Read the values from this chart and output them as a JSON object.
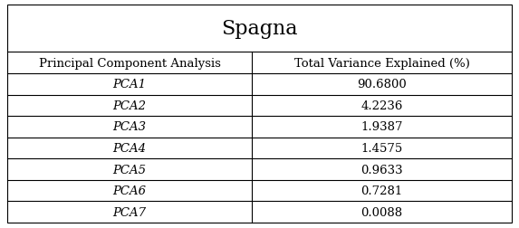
{
  "title": "Spagna",
  "col_headers": [
    "Principal Component Analysis",
    "Total Variance Explained (%)"
  ],
  "rows": [
    [
      "PCA1",
      "90.6800"
    ],
    [
      "PCA2",
      "4.2236"
    ],
    [
      "PCA3",
      "1.9387"
    ],
    [
      "PCA4",
      "1.4575"
    ],
    [
      "PCA5",
      "0.9633"
    ],
    [
      "PCA6",
      "0.7281"
    ],
    [
      "PCA7",
      "0.0088"
    ]
  ],
  "background_color": "#ffffff",
  "border_color": "#000000",
  "title_fontsize": 16,
  "header_fontsize": 9.5,
  "cell_fontsize": 9.5,
  "col_split": 0.485
}
